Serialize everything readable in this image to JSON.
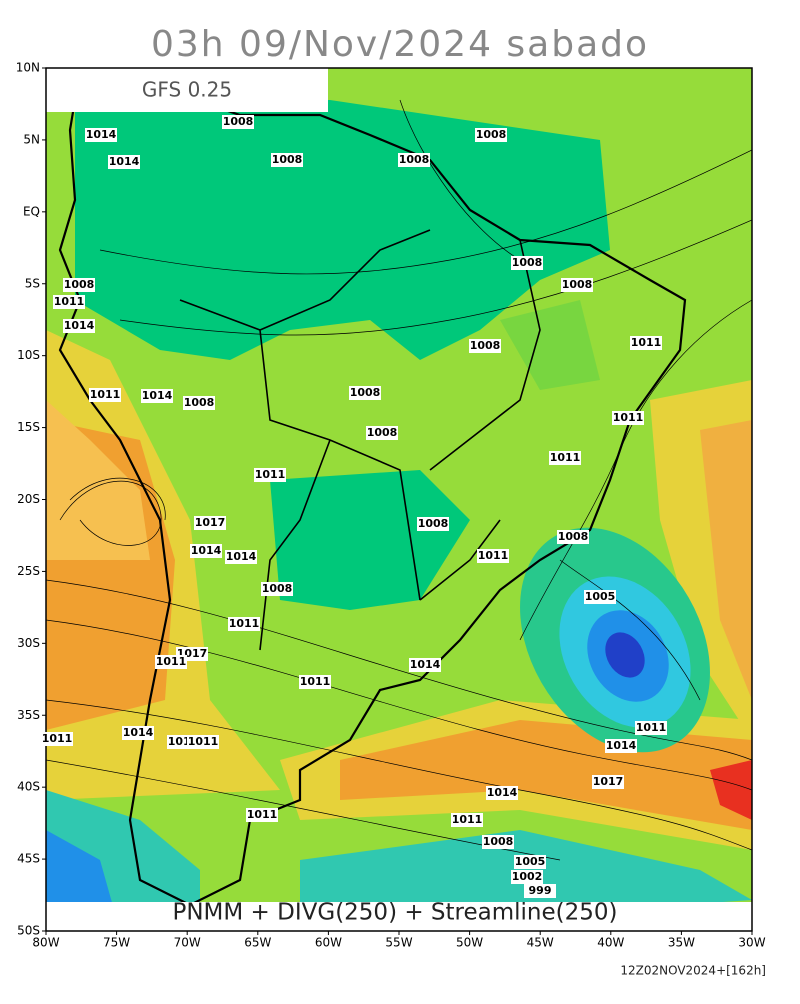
{
  "header": {
    "title": "03h 09/Nov/2024 sabado"
  },
  "model_label": "GFS 0.25",
  "legend": "PNMM + DIVG(250) + Streamline(250)",
  "footer": "12Z02NOV2024+[162h]",
  "lat_labels": [
    "10N",
    "5N",
    "EQ",
    "5S",
    "10S",
    "15S",
    "20S",
    "25S",
    "30S",
    "35S",
    "40S",
    "45S",
    "50S"
  ],
  "lon_labels": [
    "80W",
    "75W",
    "70W",
    "65W",
    "60W",
    "55W",
    "50W",
    "45W",
    "40W",
    "35W",
    "30W"
  ],
  "isobar_labels": [
    "1008",
    "1008",
    "1008",
    "1008",
    "1008",
    "1008",
    "1008",
    "1011",
    "1014",
    "1008",
    "1011",
    "1008",
    "1011",
    "1014",
    "1008",
    "1008",
    "1011",
    "1011",
    "1011",
    "1017",
    "1014",
    "1014",
    "1008",
    "1008",
    "1011",
    "1008",
    "1005",
    "1011",
    "1017",
    "1011",
    "1014",
    "1011",
    "1014",
    "1014",
    "1011",
    "1011",
    "1011",
    "1014",
    "1017",
    "1014",
    "1011",
    "1011",
    "1008",
    "1005",
    "1002",
    "999",
    "1014",
    "1014"
  ]
}
